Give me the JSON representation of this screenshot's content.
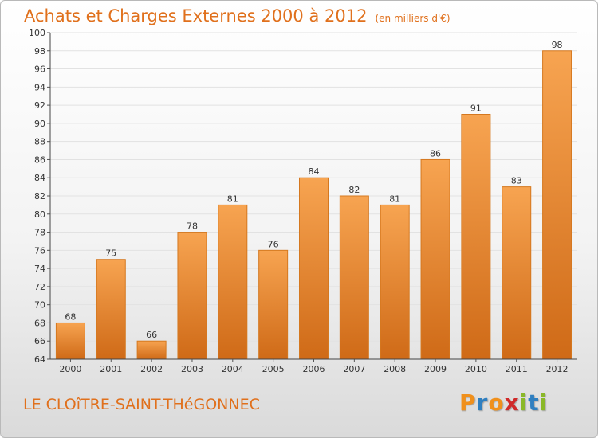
{
  "header": {
    "title": "Achats et Charges Externes 2000 à 2012",
    "subtitle": "(en milliers d'€)"
  },
  "footer": {
    "commune": "LE CLOîTRE-SAINT-THéGONNEC",
    "logo": [
      "P",
      "r",
      "o",
      "x",
      "i",
      "t",
      "i"
    ],
    "logo_colors": [
      "#f0901c",
      "#2f7fc0",
      "#f0901c",
      "#d02a2a",
      "#8ab828",
      "#2f7fc0",
      "#8ab828"
    ]
  },
  "chart_data": {
    "type": "bar",
    "title": "Achats et Charges Externes 2000 à 2012",
    "subtitle": "(en milliers d'€)",
    "categories": [
      "2000",
      "2001",
      "2002",
      "2003",
      "2004",
      "2005",
      "2006",
      "2007",
      "2008",
      "2009",
      "2010",
      "2011",
      "2012"
    ],
    "values": [
      68,
      75,
      66,
      78,
      81,
      76,
      84,
      82,
      81,
      86,
      91,
      83,
      98
    ],
    "ylim": [
      64,
      100
    ],
    "yticks": [
      "64",
      "66",
      "68",
      "70",
      "72",
      "74",
      "76",
      "78",
      "80",
      "82",
      "84",
      "86",
      "88",
      "90",
      "92",
      "94",
      "96",
      "98",
      "100"
    ],
    "grid": true,
    "colors": {
      "bar_top": "#f7a451",
      "bar_bottom": "#cf6a17",
      "bar_edge": "#d5781f"
    }
  }
}
